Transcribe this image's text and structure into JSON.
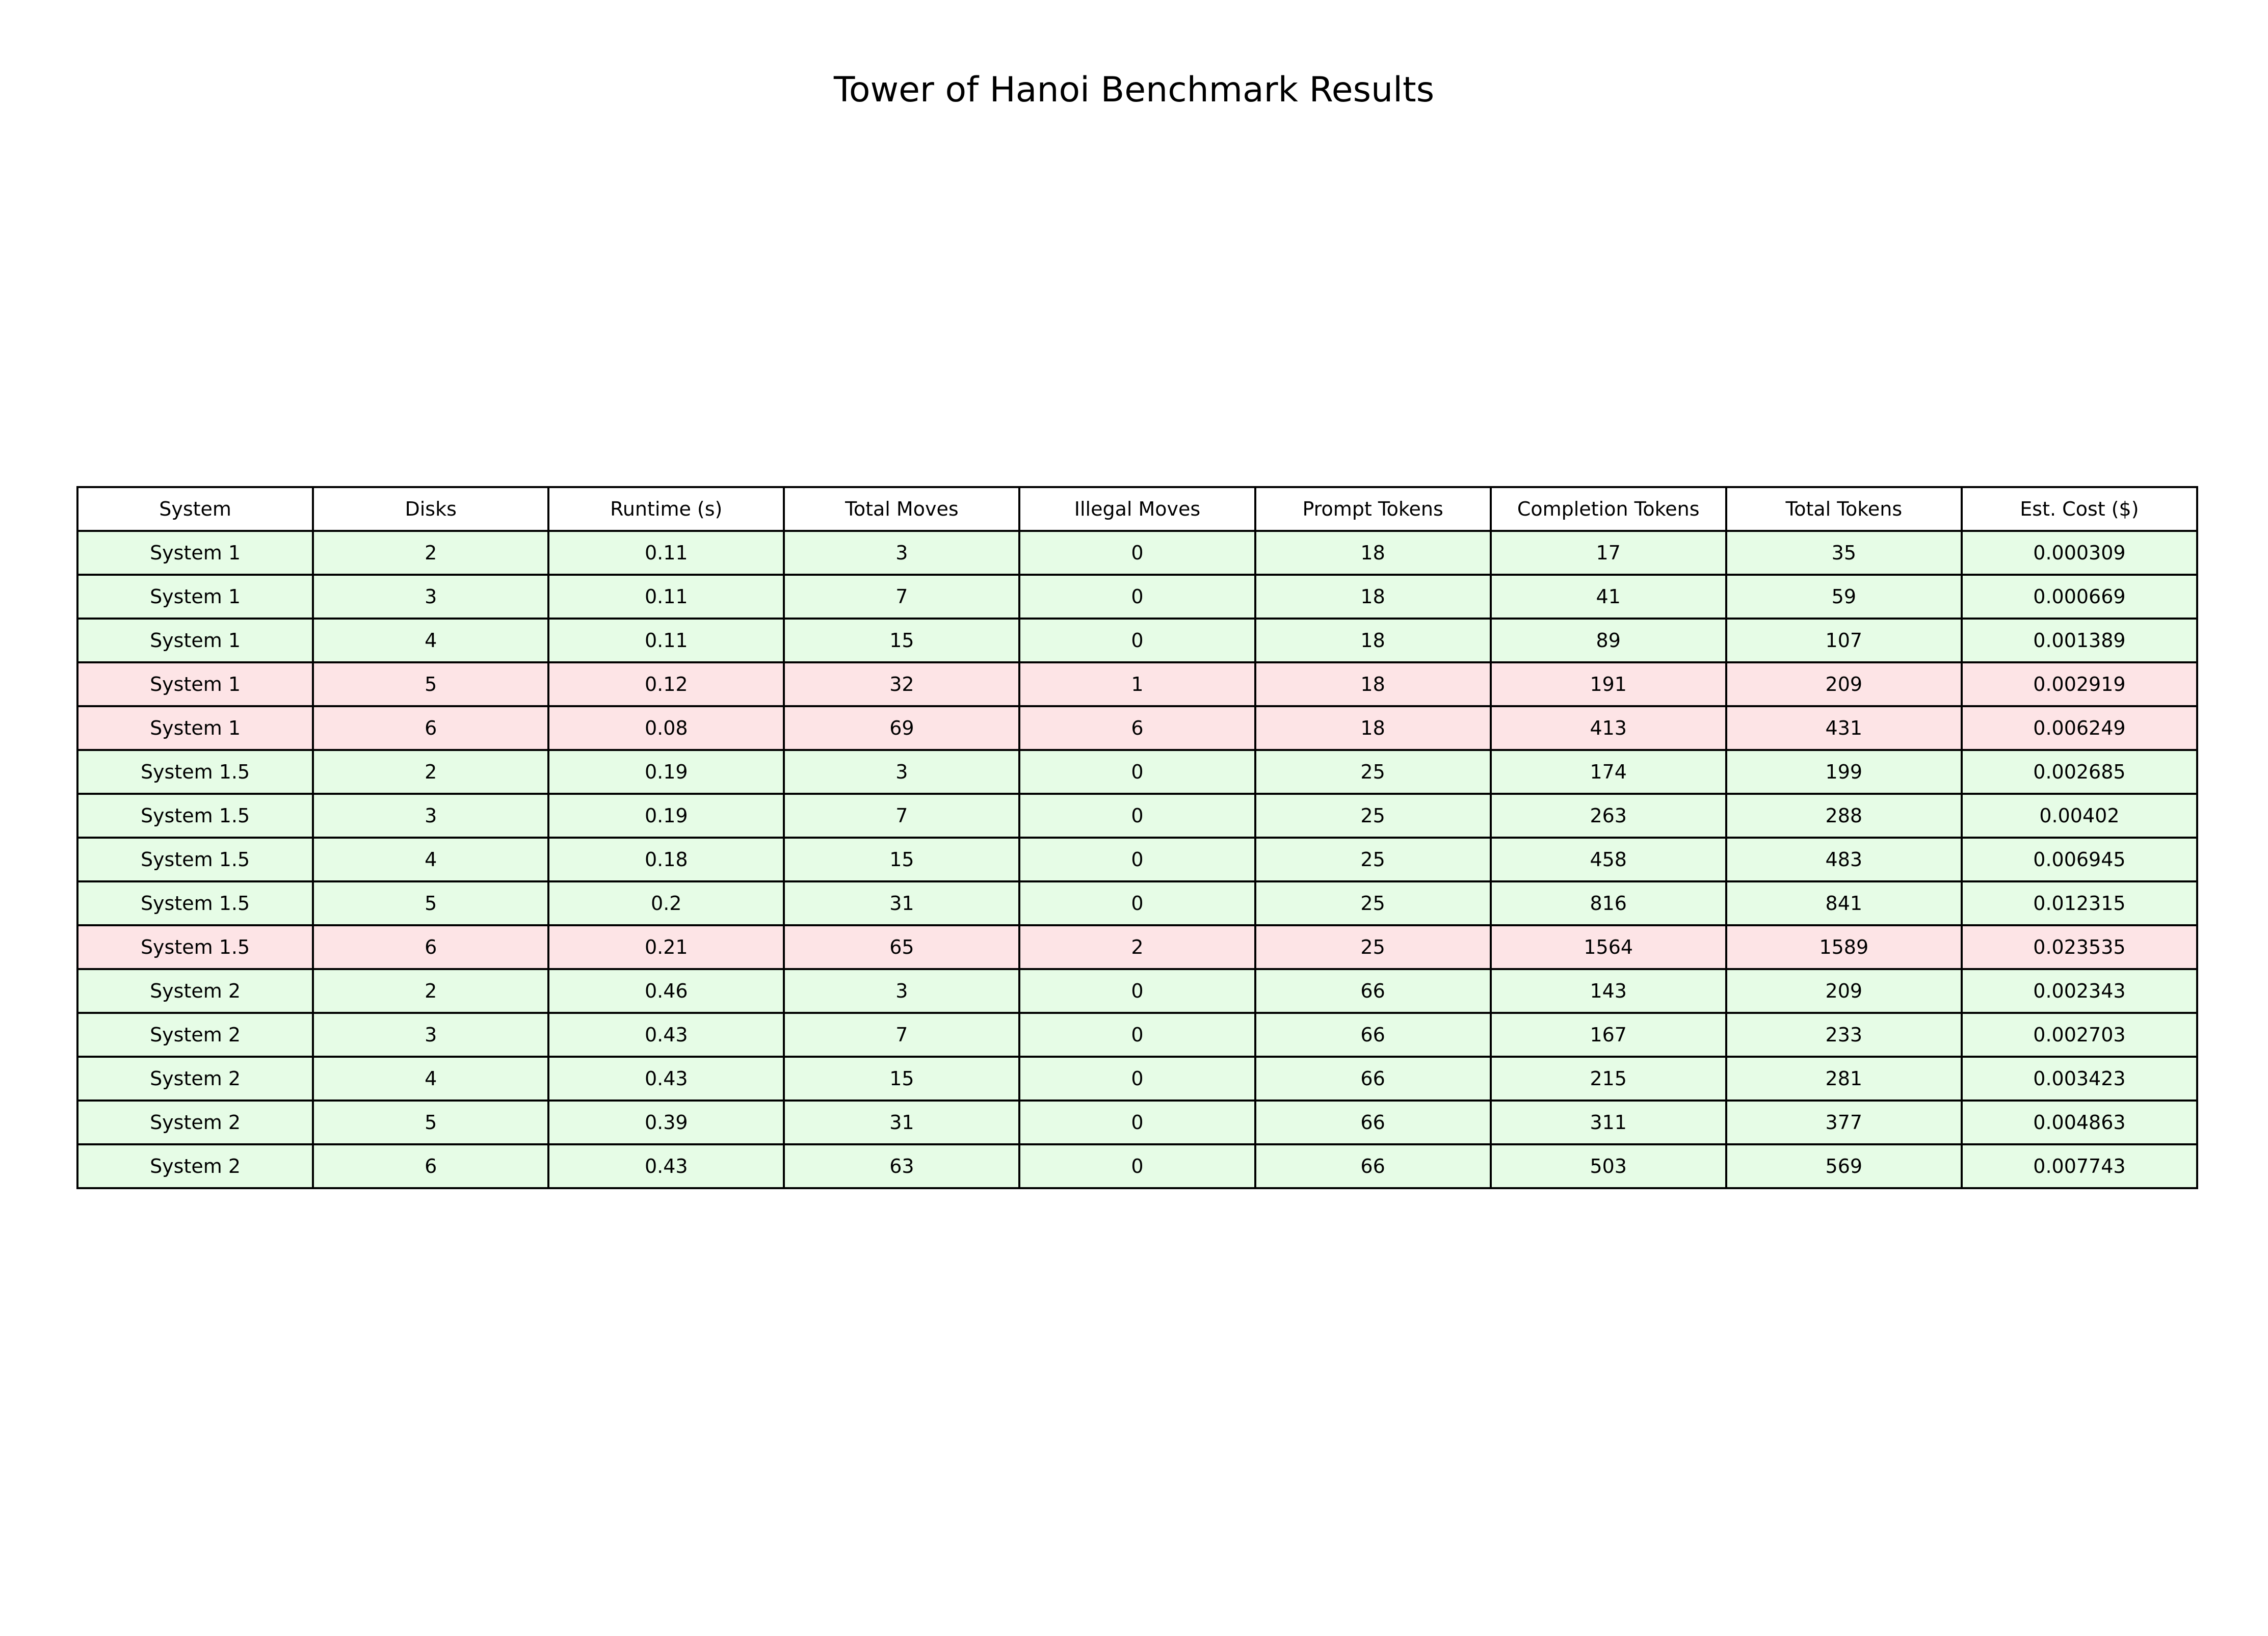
{
  "chart_data": {
    "type": "table",
    "title": "Tower of Hanoi Benchmark Results",
    "columns": [
      "System",
      "Disks",
      "Runtime (s)",
      "Total Moves",
      "Illegal Moves",
      "Prompt Tokens",
      "Completion Tokens",
      "Total Tokens",
      "Est. Cost ($)"
    ],
    "rows": [
      {
        "cells": [
          "System 1",
          "2",
          "0.11",
          "3",
          "0",
          "18",
          "17",
          "35",
          "0.000309"
        ],
        "status": "ok"
      },
      {
        "cells": [
          "System 1",
          "3",
          "0.11",
          "7",
          "0",
          "18",
          "41",
          "59",
          "0.000669"
        ],
        "status": "ok"
      },
      {
        "cells": [
          "System 1",
          "4",
          "0.11",
          "15",
          "0",
          "18",
          "89",
          "107",
          "0.001389"
        ],
        "status": "ok"
      },
      {
        "cells": [
          "System 1",
          "5",
          "0.12",
          "32",
          "1",
          "18",
          "191",
          "209",
          "0.002919"
        ],
        "status": "fail"
      },
      {
        "cells": [
          "System 1",
          "6",
          "0.08",
          "69",
          "6",
          "18",
          "413",
          "431",
          "0.006249"
        ],
        "status": "fail"
      },
      {
        "cells": [
          "System 1.5",
          "2",
          "0.19",
          "3",
          "0",
          "25",
          "174",
          "199",
          "0.002685"
        ],
        "status": "ok"
      },
      {
        "cells": [
          "System 1.5",
          "3",
          "0.19",
          "7",
          "0",
          "25",
          "263",
          "288",
          "0.00402"
        ],
        "status": "ok"
      },
      {
        "cells": [
          "System 1.5",
          "4",
          "0.18",
          "15",
          "0",
          "25",
          "458",
          "483",
          "0.006945"
        ],
        "status": "ok"
      },
      {
        "cells": [
          "System 1.5",
          "5",
          "0.2",
          "31",
          "0",
          "25",
          "816",
          "841",
          "0.012315"
        ],
        "status": "ok"
      },
      {
        "cells": [
          "System 1.5",
          "6",
          "0.21",
          "65",
          "2",
          "25",
          "1564",
          "1589",
          "0.023535"
        ],
        "status": "fail"
      },
      {
        "cells": [
          "System 2",
          "2",
          "0.46",
          "3",
          "0",
          "66",
          "143",
          "209",
          "0.002343"
        ],
        "status": "ok"
      },
      {
        "cells": [
          "System 2",
          "3",
          "0.43",
          "7",
          "0",
          "66",
          "167",
          "233",
          "0.002703"
        ],
        "status": "ok"
      },
      {
        "cells": [
          "System 2",
          "4",
          "0.43",
          "15",
          "0",
          "66",
          "215",
          "281",
          "0.003423"
        ],
        "status": "ok"
      },
      {
        "cells": [
          "System 2",
          "5",
          "0.39",
          "31",
          "0",
          "66",
          "311",
          "377",
          "0.004863"
        ],
        "status": "ok"
      },
      {
        "cells": [
          "System 2",
          "6",
          "0.43",
          "63",
          "0",
          "66",
          "503",
          "569",
          "0.007743"
        ],
        "status": "ok"
      }
    ]
  },
  "colors": {
    "ok_row": "#e6fce6",
    "fail_row": "#fde4e6",
    "header_row": "#ffffff",
    "border": "#000000"
  }
}
